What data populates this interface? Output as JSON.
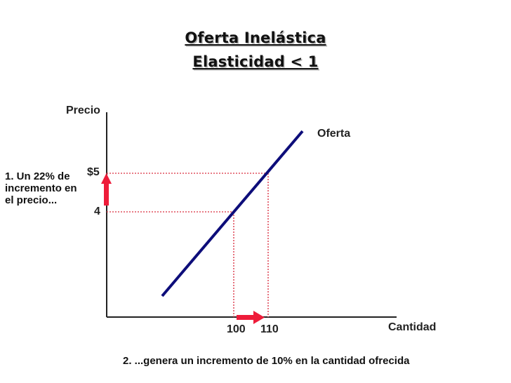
{
  "title_line1": "Oferta Inelástica",
  "title_line2": "Elasticidad < 1",
  "axes": {
    "y_label": "Precio",
    "x_label": "Cantidad"
  },
  "curve_label": "Oferta",
  "price_ticks": {
    "high": "$5",
    "low": "4"
  },
  "quantity_ticks": {
    "low": "100",
    "high": "110"
  },
  "note_left": "1. Un 22% de incremento en el precio...",
  "note_bottom": "2. ...genera un incremento de 10% en la cantidad ofrecida",
  "colors": {
    "curve": "#0d0d7a",
    "arrow": "#ee1c3a",
    "guides": "#e0505f",
    "axis": "#222222"
  }
}
